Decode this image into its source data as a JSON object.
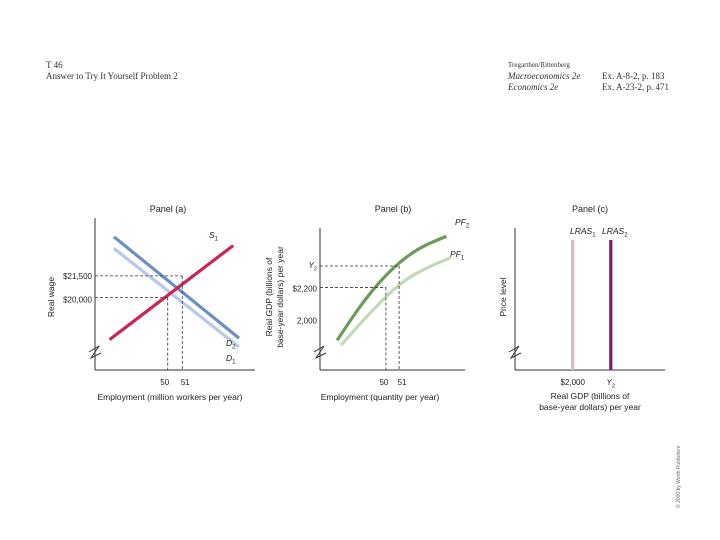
{
  "header": {
    "slide_id": "T 46",
    "slide_title": "Answer to Try It Yourself Problem 2",
    "authors": "Tregarthen/Rittenberg",
    "book1_title": "Macroeconomics 2e",
    "book1_ref": "Ex. A-8-2, p. 183",
    "book2_title": "Economics 2e",
    "book2_ref": "Ex. A-23-2, p. 471"
  },
  "copyright": "© 2000 by Worth Publishers",
  "colors": {
    "blue": "#6d8fc1",
    "light_blue": "#b7c9e4",
    "red": "#c8265b",
    "green": "#6e9a59",
    "light_green": "#c4d9b5",
    "purple": "#7d1f6d",
    "light_purple": "#d6b9cf",
    "axis": "#333333",
    "dashed": "#333333"
  },
  "chart_data": [
    {
      "type": "line",
      "title": "Panel (a)",
      "xlabel": "Employment (million workers per year)",
      "ylabel": "Real wage",
      "x_ticks": [
        "50",
        "51"
      ],
      "y_ticks": [
        "$21,500",
        "$20,000"
      ],
      "axis_break": true,
      "series": [
        {
          "name": "S1",
          "label_main": "S",
          "label_sub": "1",
          "color": "#c8265b",
          "points": [
            [
              46.0,
              17100
            ],
            [
              54.5,
              23600
            ]
          ]
        },
        {
          "name": "D2",
          "label_main": "D",
          "label_sub": "2",
          "color": "#6d8fc1",
          "points": [
            [
              46.3,
              24200
            ],
            [
              54.9,
              17200
            ]
          ]
        },
        {
          "name": "D1",
          "label_main": "D",
          "label_sub": "1",
          "color": "#b7c9e4",
          "points": [
            [
              46.3,
              23400
            ],
            [
              54.9,
              16600
            ]
          ]
        }
      ],
      "equilibria": [
        {
          "x": 50,
          "y": 20000,
          "x_label": "50",
          "y_label": "$20,000"
        },
        {
          "x": 51,
          "y": 21500,
          "x_label": "51",
          "y_label": "$21,500"
        }
      ]
    },
    {
      "type": "line",
      "title": "Panel (b)",
      "xlabel": "Employment (quantity per year)",
      "ylabel_line1": "Real GDP (billions of",
      "ylabel_line2": "base-year dollars) per year",
      "x_ticks": [
        "50",
        "51"
      ],
      "y_ticks": [
        "Y2",
        "$2,200",
        "2,000"
      ],
      "axis_break": true,
      "series": [
        {
          "name": "PF2",
          "label_main": "PF",
          "label_sub": "2",
          "color": "#6e9a59",
          "points": [
            [
              46.3,
              1880
            ],
            [
              48.4,
              2130
            ],
            [
              50.5,
              2320
            ],
            [
              52.5,
              2440
            ],
            [
              54.6,
              2510
            ]
          ]
        },
        {
          "name": "PF1",
          "label_main": "PF",
          "label_sub": "1",
          "color": "#c4d9b5",
          "points": [
            [
              46.6,
              1850
            ],
            [
              48.7,
              2040
            ],
            [
              51.1,
              2230
            ],
            [
              53.1,
              2320
            ],
            [
              54.9,
              2380
            ]
          ]
        }
      ],
      "markers": [
        {
          "x": 50,
          "y": 2200,
          "y_label": "$2,200",
          "x_label": "50"
        },
        {
          "x": 51,
          "y": 2330,
          "y_label": "Y2",
          "x_label": "51"
        },
        {
          "y": 2000,
          "y_label": "2,000"
        }
      ]
    },
    {
      "type": "line",
      "title": "Panel (c)",
      "xlabel_line1": "Real GDP (billions of",
      "xlabel_line2": "base-year dollars) per year",
      "ylabel": "Price level",
      "x_ticks": [
        "$2,000",
        "Y2"
      ],
      "axis_break": true,
      "series": [
        {
          "name": "LRAS1",
          "label_main": "LRAS",
          "label_sub": "1",
          "color": "#d6b9cf",
          "x": 2000
        },
        {
          "name": "LRAS2",
          "label_main": "LRAS",
          "label_sub": "2",
          "color": "#7d1f6d",
          "x": 2330
        }
      ]
    }
  ]
}
